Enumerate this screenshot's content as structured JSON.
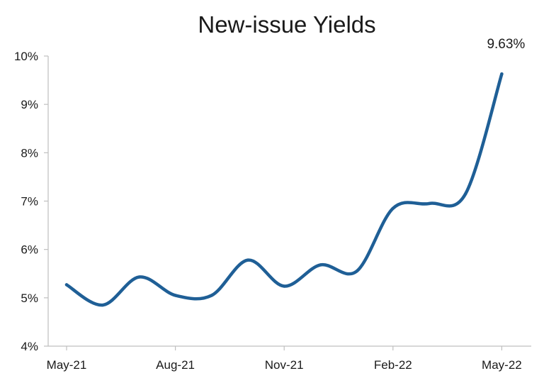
{
  "chart_data": {
    "type": "line",
    "title": "New-issue Yields",
    "xlabel": "",
    "ylabel": "",
    "x_tick_labels": [
      "May-21",
      "Aug-21",
      "Nov-21",
      "Feb-22",
      "May-22"
    ],
    "y_tick_labels": [
      "4%",
      "5%",
      "6%",
      "7%",
      "8%",
      "9%",
      "10%"
    ],
    "ylim": [
      4,
      10
    ],
    "grid": false,
    "legend": "none",
    "color": "#1f5f96",
    "series": [
      {
        "x": [
          "May-21",
          "Jun-21",
          "Jul-21",
          "Aug-21",
          "Sep-21",
          "Oct-21",
          "Nov-21",
          "Dec-21",
          "Jan-22",
          "Feb-22",
          "Mar-22",
          "Apr-22",
          "May-22"
        ],
        "values": [
          5.27,
          4.85,
          5.43,
          5.05,
          5.05,
          5.78,
          5.24,
          5.68,
          5.55,
          6.85,
          6.95,
          7.15,
          9.63
        ]
      }
    ],
    "annotations": [
      {
        "text": "9.63%",
        "x": "May-22",
        "y": 9.63
      }
    ]
  }
}
